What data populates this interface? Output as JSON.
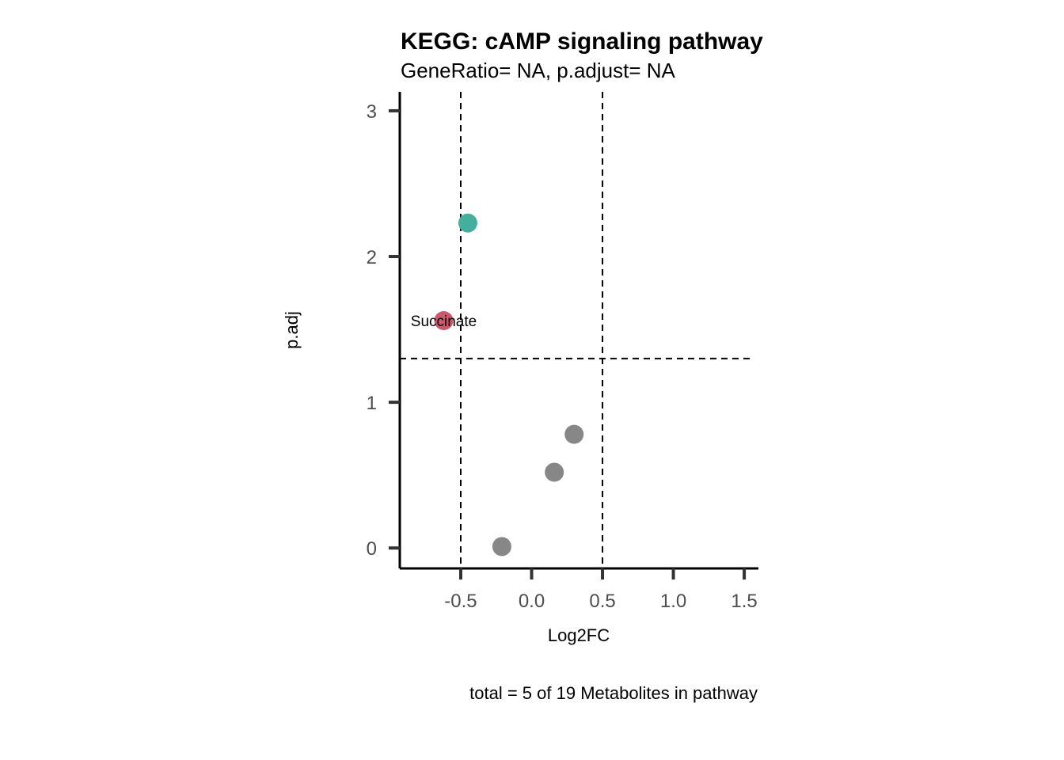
{
  "chart_data": {
    "type": "scatter",
    "title": "KEGG: cAMP signaling pathway",
    "subtitle": "GeneRatio= NA, p.adjust= NA",
    "xlabel": "Log2FC",
    "ylabel": "p.adj",
    "caption": "total = 5 of 19 Metabolites in pathway",
    "xlim": [
      -0.93,
      1.6
    ],
    "ylim": [
      -0.14,
      3.13
    ],
    "x_ticks": [
      -0.5,
      0.0,
      0.5,
      1.0,
      1.5
    ],
    "x_tick_labels": [
      "-0.5",
      "0.0",
      "0.5",
      "1.0",
      "1.5"
    ],
    "y_ticks": [
      0,
      1,
      2,
      3
    ],
    "y_tick_labels": [
      "0",
      "1",
      "2",
      "3"
    ],
    "vlines": [
      -0.5,
      0.5
    ],
    "hlines": [
      1.3
    ],
    "grid": false,
    "points": [
      {
        "x": -0.45,
        "y": 2.23,
        "color": "#45AE9C",
        "label": ""
      },
      {
        "x": -0.62,
        "y": 1.56,
        "color": "#C9596B",
        "label": "Succinate"
      },
      {
        "x": 0.3,
        "y": 0.78,
        "color": "#878787",
        "label": ""
      },
      {
        "x": 0.16,
        "y": 0.52,
        "color": "#878787",
        "label": ""
      },
      {
        "x": -0.21,
        "y": 0.01,
        "color": "#878787",
        "label": ""
      }
    ]
  }
}
